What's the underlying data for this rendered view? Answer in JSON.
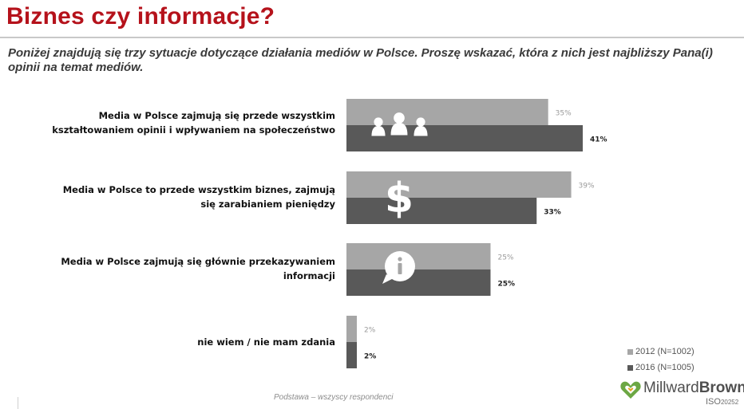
{
  "title": "Biznes czy informacje?",
  "question": "Poniżej znajdują się trzy sytuacje dotyczące działania mediów w Polsce. Proszę wskazać, która z nich jest najbliższy Pana(i) opinii na temat mediów.",
  "footnote": "Podstawa – wszyscy respondenci",
  "logo": {
    "brand_a": "Millward",
    "brand_b": "Brown",
    "iso": "ISO",
    "iso_number": "20252"
  },
  "chart_data": {
    "type": "bar",
    "orientation": "horizontal",
    "categories": [
      "Media w Polsce zajmują się przede wszystkim kształtowaniem opinii i wpływaniem na społeczeństwo",
      "Media w Polsce to przede wszystkim biznes, zajmują się zarabianiem pieniędzy",
      "Media w Polsce zajmują się głównie przekazywaniem informacji",
      "nie wiem / nie mam zdania"
    ],
    "category_icons": [
      "people-icon",
      "dollar-icon",
      "info-bubble-icon",
      ""
    ],
    "series": [
      {
        "name": "2012 (N=1002)",
        "values": [
          35,
          39,
          25,
          2
        ],
        "labels": [
          "35%",
          "39%",
          "25%",
          "2%"
        ],
        "color": "#a6a6a6"
      },
      {
        "name": "2016 (N=1005)",
        "values": [
          41,
          33,
          25,
          2
        ],
        "labels": [
          "41%",
          "33%",
          "25%",
          "2%"
        ],
        "color": "#595959"
      }
    ],
    "xlim": [
      0,
      41
    ],
    "legend_position": "bottom-right",
    "grid": false
  }
}
